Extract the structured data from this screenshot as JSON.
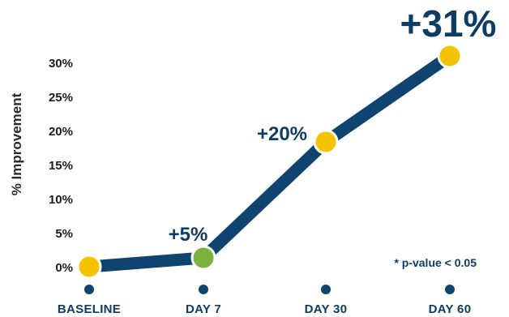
{
  "chart_data": {
    "type": "line",
    "ylabel": "% Improvement",
    "xlabel": "",
    "ylim": [
      0,
      30
    ],
    "yticks": [
      "0%",
      "5%",
      "10%",
      "15%",
      "20%",
      "25%",
      "30%"
    ],
    "categories": [
      "BASELINE",
      "DAY 7",
      "DAY 30",
      "DAY 60"
    ],
    "values": [
      0,
      5,
      20,
      31
    ],
    "data_labels": [
      "",
      "+5%",
      "+20%",
      "+31%"
    ],
    "point_colors": [
      "#f5c400",
      "#7ab33e",
      "#f5c400",
      "#f5c400"
    ],
    "line_color": "#0f4470",
    "annotation": "* p-value < 0.05",
    "grid": false,
    "legend": "none"
  }
}
